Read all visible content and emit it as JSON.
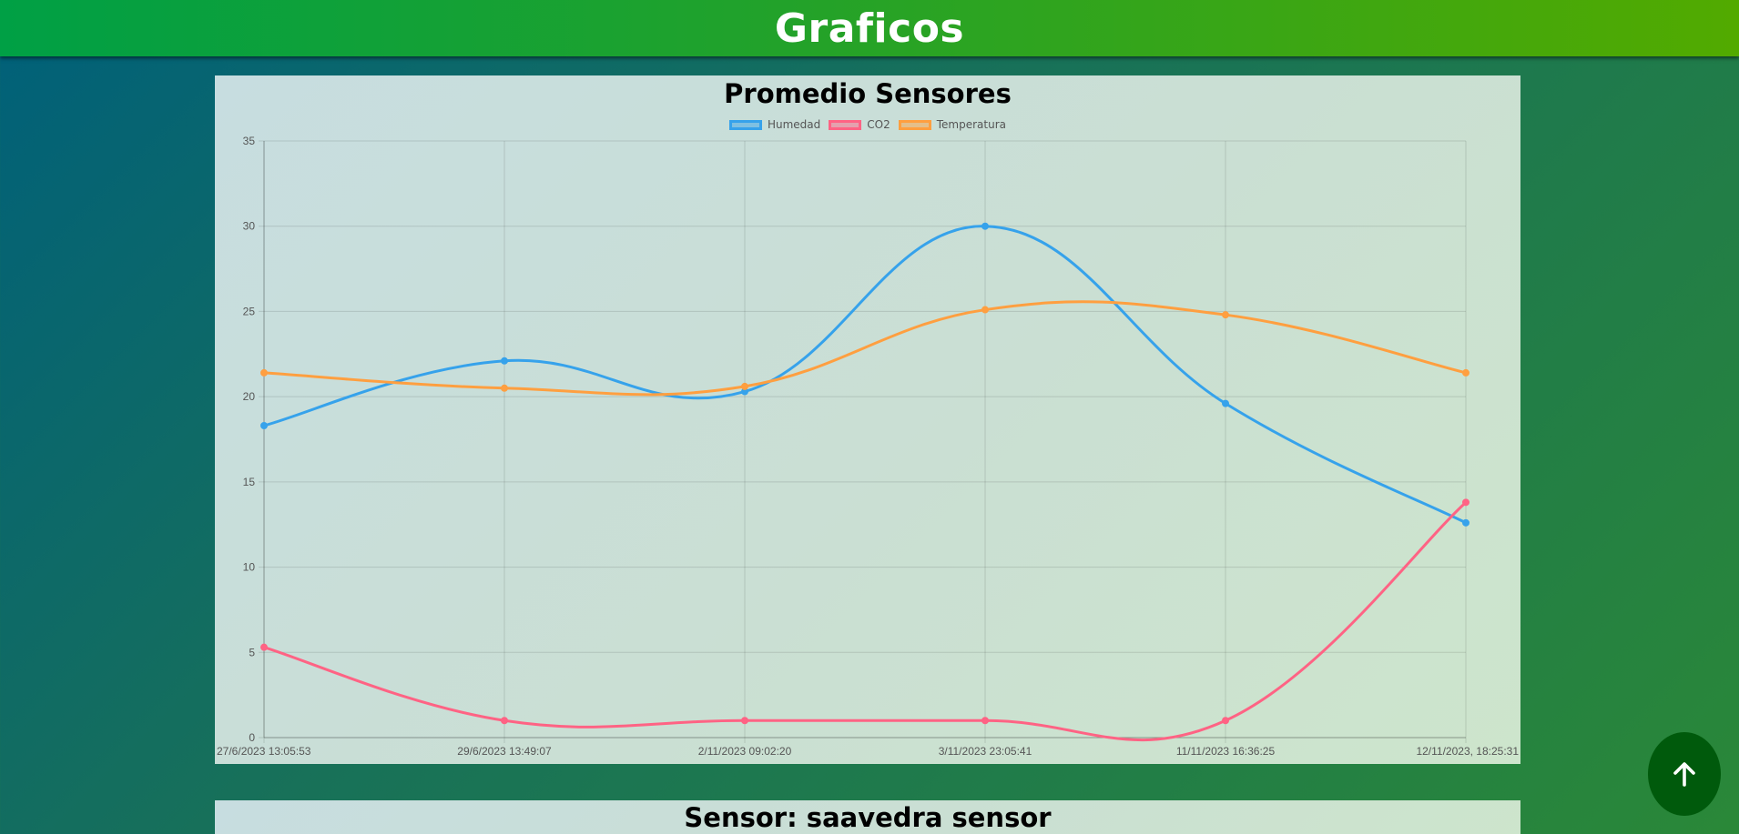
{
  "header": {
    "title": "Graficos"
  },
  "sections": [
    {
      "title": "Promedio Sensores"
    },
    {
      "title": "Sensor: saavedra sensor"
    }
  ],
  "icons": {
    "scroll_top": "arrow-up-icon"
  },
  "colors": {
    "humedad": "#36a2eb",
    "co2": "#ff6384",
    "temperatura": "#ff9f40",
    "fab": "#005a0c"
  },
  "chart_data": {
    "type": "line",
    "title": "Promedio Sensores",
    "categories": [
      "27/6/2023 13:05:53",
      "29/6/2023 13:49:07",
      "2/11/2023 09:02:20",
      "3/11/2023 23:05:41",
      "11/11/2023 16:36:25",
      "12/11/2023, 18:25:31"
    ],
    "series": [
      {
        "name": "Humedad",
        "color": "#36a2eb",
        "values": [
          18.3,
          22.1,
          20.3,
          30.0,
          19.6,
          12.6
        ]
      },
      {
        "name": "CO2",
        "color": "#ff6384",
        "values": [
          5.3,
          1.0,
          1.0,
          1.0,
          1.0,
          13.8
        ]
      },
      {
        "name": "Temperatura",
        "color": "#ff9f40",
        "values": [
          21.4,
          20.5,
          20.6,
          25.1,
          24.8,
          21.4
        ]
      }
    ],
    "ylim": [
      0,
      35
    ],
    "yticks": [
      0,
      5,
      10,
      15,
      20,
      25,
      30,
      35
    ],
    "grid": true,
    "legend": "top-center"
  }
}
